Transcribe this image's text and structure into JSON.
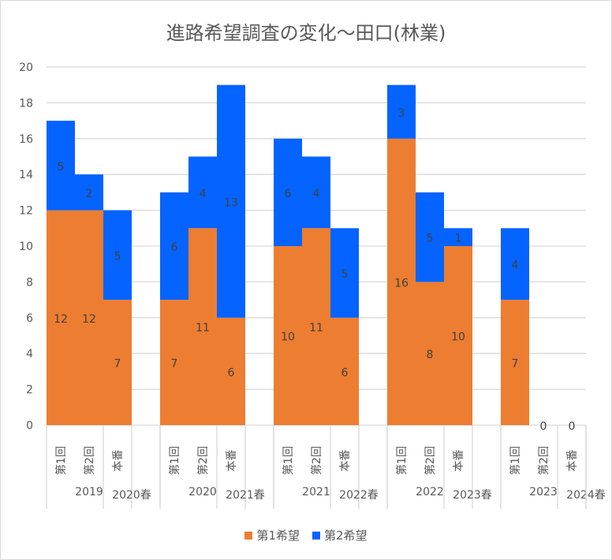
{
  "chart_data": {
    "type": "bar",
    "stacked": true,
    "title": "進路希望調査の変化～田口(林業)",
    "xlabel": "",
    "ylabel": "",
    "ylim": [
      0,
      20
    ],
    "yticks": [
      "0",
      "2",
      "4",
      "6",
      "8",
      "10",
      "12",
      "14",
      "16",
      "18",
      "20"
    ],
    "grid": true,
    "legend_position": "bottom",
    "groups": [
      {
        "year": "2019",
        "spring": "2020春",
        "categories": [
          "第1回",
          "第2回",
          "本番"
        ]
      },
      {
        "year": "2020",
        "spring": "2021春",
        "categories": [
          "第1回",
          "第2回",
          "本番"
        ]
      },
      {
        "year": "2021",
        "spring": "2022春",
        "categories": [
          "第1回",
          "第2回",
          "本番"
        ]
      },
      {
        "year": "2022",
        "spring": "2023春",
        "categories": [
          "第1回",
          "第2回",
          "本番"
        ]
      },
      {
        "year": "2023",
        "spring": "2024春",
        "categories": [
          "第1回",
          "第2回",
          "本番"
        ]
      }
    ],
    "series": [
      {
        "name": "第1希望",
        "color": "#ED7D31",
        "values": [
          [
            12,
            12,
            7
          ],
          [
            7,
            11,
            6
          ],
          [
            10,
            11,
            6
          ],
          [
            16,
            8,
            10
          ],
          [
            7,
            null,
            null
          ]
        ]
      },
      {
        "name": "第2希望",
        "color": "#0563FF",
        "values": [
          [
            5,
            2,
            5
          ],
          [
            6,
            4,
            13
          ],
          [
            6,
            4,
            5
          ],
          [
            3,
            5,
            1
          ],
          [
            4,
            0,
            0
          ]
        ]
      }
    ]
  }
}
